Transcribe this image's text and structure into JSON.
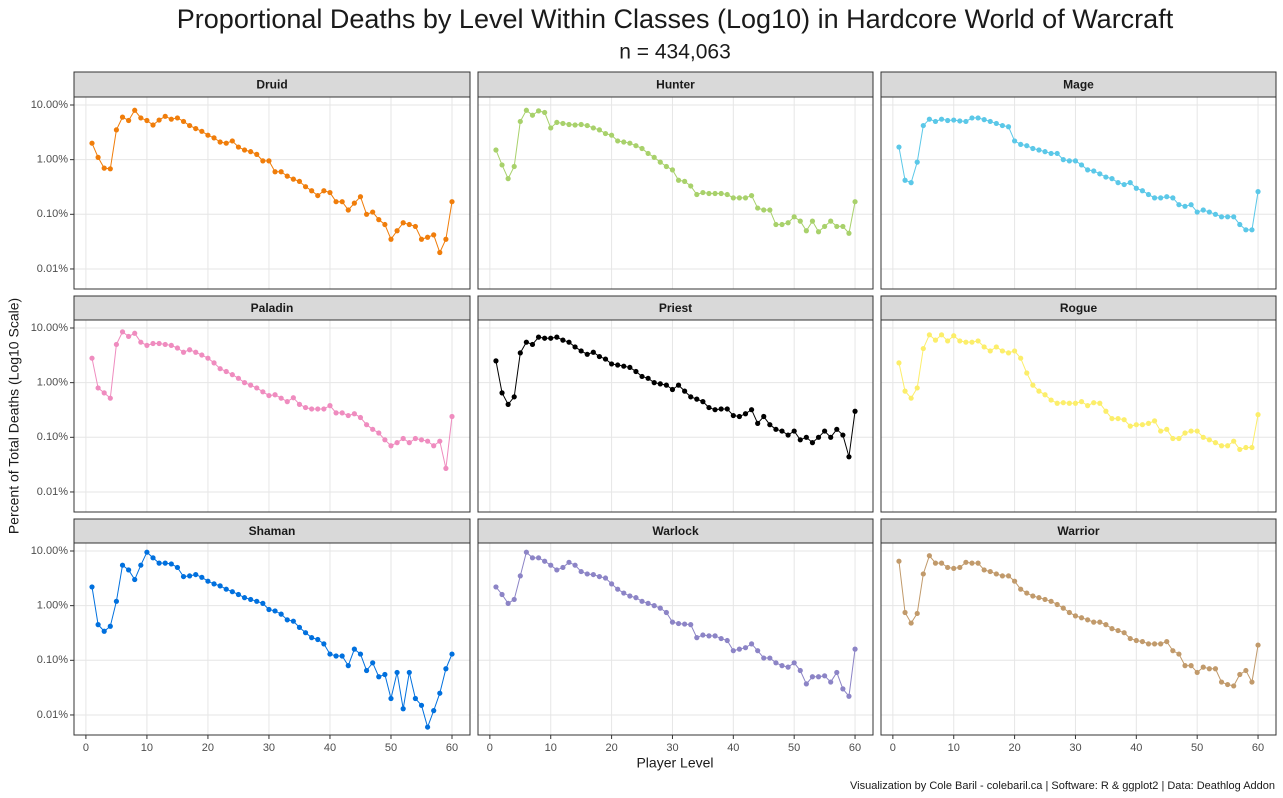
{
  "chart_data": {
    "type": "line",
    "title": "Proportional Deaths by Level Within Classes (Log10) in Hardcore World of Warcraft",
    "subtitle": "n = 434,063",
    "x_label": "Player Level",
    "y_label": "Percent of Total Deaths (Log10 Scale)",
    "caption": "Visualization by Cole Baril - colebaril.ca | Software: R & ggplot2 | Data: Deathlog Addon",
    "log_y": true,
    "grid": true,
    "xlim": [
      -1.95,
      62.95
    ],
    "xticks": [
      0,
      10,
      20,
      30,
      40,
      50,
      60
    ],
    "ylim": [
      0.0043,
      14
    ],
    "yticks": [
      {
        "value": 0.01,
        "label": "0.01%"
      },
      {
        "value": 0.1,
        "label": "0.10%"
      },
      {
        "value": 1,
        "label": "1.00%"
      },
      {
        "value": 10,
        "label": "10.00%"
      }
    ],
    "x": [
      1,
      2,
      3,
      4,
      5,
      6,
      7,
      8,
      9,
      10,
      11,
      12,
      13,
      14,
      15,
      16,
      17,
      18,
      19,
      20,
      21,
      22,
      23,
      24,
      25,
      26,
      27,
      28,
      29,
      30,
      31,
      32,
      33,
      34,
      35,
      36,
      37,
      38,
      39,
      40,
      41,
      42,
      43,
      44,
      45,
      46,
      47,
      48,
      49,
      50,
      51,
      52,
      53,
      54,
      55,
      56,
      57,
      58,
      59,
      60
    ],
    "series": [
      {
        "name": "Druid",
        "color": "#f07d0a",
        "values": [
          2.0,
          1.1,
          0.7,
          0.68,
          3.5,
          6.0,
          5.2,
          8.0,
          5.8,
          5.2,
          4.3,
          5.3,
          6.2,
          5.5,
          5.8,
          5.0,
          4.2,
          3.7,
          3.3,
          2.8,
          2.5,
          2.1,
          2.0,
          2.2,
          1.7,
          1.5,
          1.4,
          1.25,
          0.95,
          0.95,
          0.6,
          0.6,
          0.5,
          0.44,
          0.4,
          0.32,
          0.27,
          0.22,
          0.27,
          0.25,
          0.17,
          0.17,
          0.12,
          0.16,
          0.21,
          0.1,
          0.11,
          0.08,
          0.065,
          0.035,
          0.05,
          0.07,
          0.065,
          0.06,
          0.035,
          0.038,
          0.042,
          0.02,
          0.035,
          0.17
        ]
      },
      {
        "name": "Hunter",
        "color": "#a8d16b",
        "values": [
          1.5,
          0.8,
          0.45,
          0.75,
          5.0,
          8.0,
          6.5,
          7.8,
          7.3,
          3.8,
          4.8,
          4.6,
          4.4,
          4.3,
          4.4,
          4.2,
          3.8,
          3.5,
          3.0,
          2.8,
          2.2,
          2.1,
          2.0,
          1.8,
          1.6,
          1.3,
          1.1,
          0.9,
          0.75,
          0.65,
          0.42,
          0.4,
          0.33,
          0.23,
          0.25,
          0.24,
          0.24,
          0.24,
          0.23,
          0.2,
          0.2,
          0.2,
          0.22,
          0.13,
          0.12,
          0.12,
          0.065,
          0.065,
          0.07,
          0.09,
          0.075,
          0.05,
          0.075,
          0.048,
          0.06,
          0.075,
          0.06,
          0.06,
          0.045,
          0.17
        ]
      },
      {
        "name": "Mage",
        "color": "#5bc8e8",
        "values": [
          1.7,
          0.42,
          0.38,
          0.9,
          4.2,
          5.5,
          5.0,
          5.5,
          5.2,
          5.3,
          5.1,
          5.0,
          5.8,
          5.8,
          5.4,
          5.0,
          4.6,
          4.2,
          4.0,
          2.2,
          1.9,
          1.8,
          1.6,
          1.5,
          1.4,
          1.3,
          1.3,
          1.0,
          0.95,
          0.95,
          0.8,
          0.65,
          0.62,
          0.55,
          0.48,
          0.45,
          0.38,
          0.35,
          0.38,
          0.3,
          0.27,
          0.23,
          0.2,
          0.2,
          0.21,
          0.2,
          0.15,
          0.14,
          0.15,
          0.11,
          0.12,
          0.11,
          0.1,
          0.09,
          0.09,
          0.09,
          0.065,
          0.052,
          0.052,
          0.26
        ]
      },
      {
        "name": "Paladin",
        "color": "#ef8cbf",
        "values": [
          2.8,
          0.8,
          0.65,
          0.52,
          5.0,
          8.5,
          7.0,
          8.0,
          5.5,
          4.8,
          5.2,
          5.2,
          5.0,
          4.8,
          4.3,
          3.6,
          4.0,
          3.6,
          3.2,
          2.8,
          2.3,
          1.8,
          1.6,
          1.4,
          1.2,
          1.0,
          0.9,
          0.8,
          0.68,
          0.58,
          0.6,
          0.52,
          0.45,
          0.53,
          0.4,
          0.35,
          0.33,
          0.33,
          0.33,
          0.38,
          0.28,
          0.28,
          0.25,
          0.27,
          0.23,
          0.17,
          0.14,
          0.12,
          0.09,
          0.07,
          0.08,
          0.095,
          0.08,
          0.095,
          0.09,
          0.085,
          0.07,
          0.085,
          0.027,
          0.24
        ]
      },
      {
        "name": "Priest",
        "color": "#000000",
        "values": [
          2.5,
          0.65,
          0.4,
          0.55,
          3.5,
          5.5,
          5.0,
          6.8,
          6.5,
          6.5,
          6.8,
          6.0,
          5.5,
          4.5,
          3.8,
          3.3,
          3.6,
          3.0,
          2.7,
          2.2,
          2.1,
          2.0,
          1.9,
          1.6,
          1.3,
          1.2,
          1.0,
          0.95,
          0.9,
          0.75,
          0.9,
          0.7,
          0.55,
          0.5,
          0.45,
          0.35,
          0.32,
          0.33,
          0.33,
          0.25,
          0.24,
          0.27,
          0.32,
          0.18,
          0.24,
          0.17,
          0.14,
          0.13,
          0.11,
          0.13,
          0.09,
          0.1,
          0.08,
          0.1,
          0.13,
          0.1,
          0.14,
          0.11,
          0.044,
          0.3
        ]
      },
      {
        "name": "Rogue",
        "color": "#fcee6a",
        "values": [
          2.3,
          0.7,
          0.52,
          0.8,
          4.2,
          7.5,
          6.0,
          7.5,
          5.8,
          7.2,
          5.8,
          5.5,
          5.5,
          5.8,
          4.5,
          3.8,
          4.5,
          3.8,
          3.5,
          3.8,
          2.8,
          1.5,
          0.9,
          0.7,
          0.6,
          0.48,
          0.42,
          0.43,
          0.42,
          0.42,
          0.45,
          0.38,
          0.43,
          0.42,
          0.3,
          0.22,
          0.22,
          0.21,
          0.16,
          0.17,
          0.17,
          0.18,
          0.2,
          0.13,
          0.14,
          0.095,
          0.095,
          0.12,
          0.13,
          0.13,
          0.1,
          0.09,
          0.08,
          0.07,
          0.07,
          0.085,
          0.06,
          0.065,
          0.065,
          0.26
        ]
      },
      {
        "name": "Shaman",
        "color": "#0070de",
        "values": [
          2.2,
          0.45,
          0.34,
          0.42,
          1.2,
          5.5,
          4.5,
          3.0,
          5.5,
          9.5,
          7.5,
          6.0,
          6.0,
          5.8,
          5.0,
          3.4,
          3.5,
          3.7,
          3.3,
          2.8,
          2.5,
          2.3,
          2.0,
          1.8,
          1.6,
          1.4,
          1.3,
          1.2,
          1.1,
          0.85,
          0.8,
          0.7,
          0.55,
          0.52,
          0.4,
          0.32,
          0.26,
          0.24,
          0.2,
          0.13,
          0.12,
          0.12,
          0.08,
          0.16,
          0.13,
          0.065,
          0.09,
          0.05,
          0.055,
          0.02,
          0.06,
          0.013,
          0.06,
          0.02,
          0.015,
          0.006,
          0.012,
          0.025,
          0.07,
          0.13
        ]
      },
      {
        "name": "Warlock",
        "color": "#8c84c6",
        "values": [
          2.2,
          1.6,
          1.1,
          1.3,
          3.5,
          9.5,
          7.5,
          7.5,
          6.5,
          5.5,
          4.5,
          5.0,
          6.2,
          5.5,
          4.2,
          3.8,
          3.7,
          3.4,
          3.2,
          2.5,
          2.0,
          1.7,
          1.5,
          1.4,
          1.2,
          1.1,
          1.0,
          0.9,
          0.75,
          0.5,
          0.47,
          0.46,
          0.45,
          0.26,
          0.29,
          0.28,
          0.28,
          0.25,
          0.23,
          0.15,
          0.16,
          0.17,
          0.2,
          0.15,
          0.11,
          0.11,
          0.09,
          0.08,
          0.075,
          0.09,
          0.065,
          0.037,
          0.05,
          0.05,
          0.052,
          0.04,
          0.06,
          0.03,
          0.022,
          0.16
        ]
      },
      {
        "name": "Warrior",
        "color": "#c19a6b",
        "values": [
          6.5,
          0.75,
          0.48,
          0.72,
          3.8,
          8.2,
          6.0,
          6.0,
          5.0,
          4.8,
          5.0,
          6.2,
          6.0,
          6.0,
          4.5,
          4.2,
          3.8,
          3.5,
          3.5,
          2.8,
          2.0,
          1.7,
          1.5,
          1.4,
          1.3,
          1.2,
          1.05,
          0.9,
          0.75,
          0.65,
          0.6,
          0.55,
          0.5,
          0.5,
          0.45,
          0.38,
          0.35,
          0.32,
          0.25,
          0.23,
          0.22,
          0.2,
          0.2,
          0.2,
          0.22,
          0.15,
          0.13,
          0.08,
          0.08,
          0.06,
          0.075,
          0.07,
          0.07,
          0.04,
          0.036,
          0.034,
          0.055,
          0.065,
          0.04,
          0.19
        ]
      }
    ]
  }
}
